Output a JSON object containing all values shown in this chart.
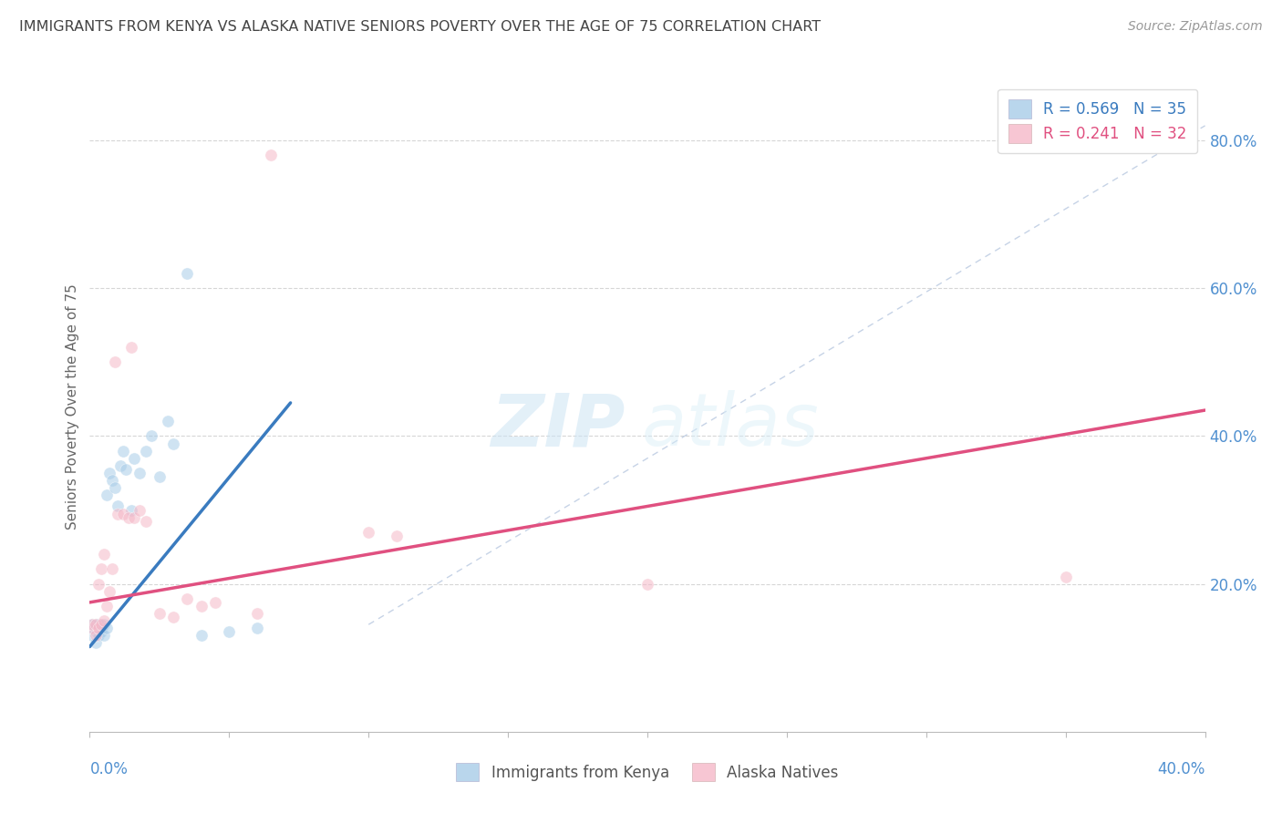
{
  "title": "IMMIGRANTS FROM KENYA VS ALASKA NATIVE SENIORS POVERTY OVER THE AGE OF 75 CORRELATION CHART",
  "source": "Source: ZipAtlas.com",
  "ylabel": "Seniors Poverty Over the Age of 75",
  "right_yticks": [
    "80.0%",
    "60.0%",
    "40.0%",
    "20.0%"
  ],
  "right_ytick_vals": [
    0.8,
    0.6,
    0.4,
    0.2
  ],
  "xlim": [
    0.0,
    0.4
  ],
  "ylim": [
    0.0,
    0.88
  ],
  "blue_scatter_x": [
    0.001,
    0.001,
    0.001,
    0.002,
    0.002,
    0.002,
    0.002,
    0.003,
    0.003,
    0.003,
    0.004,
    0.004,
    0.005,
    0.005,
    0.006,
    0.006,
    0.007,
    0.008,
    0.009,
    0.01,
    0.011,
    0.012,
    0.013,
    0.015,
    0.016,
    0.018,
    0.02,
    0.022,
    0.025,
    0.028,
    0.03,
    0.035,
    0.04,
    0.05,
    0.06
  ],
  "blue_scatter_y": [
    0.13,
    0.14,
    0.145,
    0.12,
    0.135,
    0.14,
    0.145,
    0.13,
    0.14,
    0.145,
    0.135,
    0.14,
    0.13,
    0.145,
    0.14,
    0.32,
    0.35,
    0.34,
    0.33,
    0.305,
    0.36,
    0.38,
    0.355,
    0.3,
    0.37,
    0.35,
    0.38,
    0.4,
    0.345,
    0.42,
    0.39,
    0.62,
    0.13,
    0.135,
    0.14
  ],
  "pink_scatter_x": [
    0.001,
    0.001,
    0.002,
    0.002,
    0.003,
    0.003,
    0.004,
    0.004,
    0.005,
    0.005,
    0.006,
    0.007,
    0.008,
    0.009,
    0.01,
    0.012,
    0.014,
    0.015,
    0.016,
    0.018,
    0.02,
    0.025,
    0.03,
    0.035,
    0.04,
    0.045,
    0.06,
    0.065,
    0.1,
    0.11,
    0.2,
    0.35
  ],
  "pink_scatter_y": [
    0.14,
    0.145,
    0.13,
    0.145,
    0.14,
    0.2,
    0.145,
    0.22,
    0.15,
    0.24,
    0.17,
    0.19,
    0.22,
    0.5,
    0.295,
    0.295,
    0.29,
    0.52,
    0.29,
    0.3,
    0.285,
    0.16,
    0.155,
    0.18,
    0.17,
    0.175,
    0.16,
    0.78,
    0.27,
    0.265,
    0.2,
    0.21
  ],
  "blue_line_x": [
    0.0,
    0.072
  ],
  "blue_line_y": [
    0.115,
    0.445
  ],
  "pink_line_x": [
    0.0,
    0.4
  ],
  "pink_line_y": [
    0.175,
    0.435
  ],
  "diag_line_x": [
    0.1,
    0.4
  ],
  "diag_line_y": [
    0.145,
    0.82
  ],
  "scatter_alpha": 0.55,
  "scatter_size": 90,
  "blue_color": "#a8cce8",
  "pink_color": "#f5b8c8",
  "blue_line_color": "#3a7bbf",
  "pink_line_color": "#e05080",
  "diag_line_color": "#b8c8e0",
  "title_color": "#444444",
  "source_color": "#999999",
  "axis_label_color": "#5090d0",
  "right_axis_color": "#5090d0",
  "watermark_zip_color": "#cce0f0",
  "watermark_atlas_color": "#d8eaf8"
}
